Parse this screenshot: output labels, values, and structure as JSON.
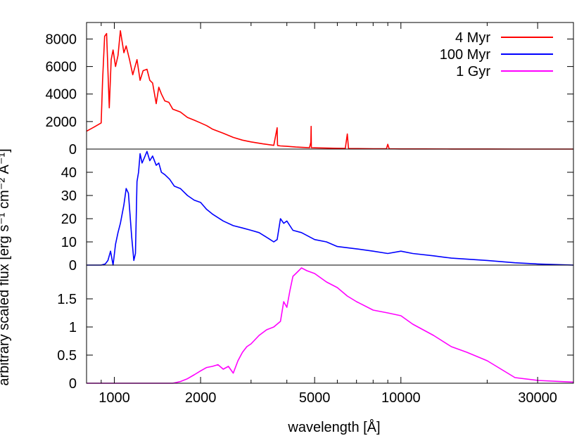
{
  "chart_data": {
    "type": "line",
    "xlabel": "wavelength [Å]",
    "ylabel": "arbitrary scaled flux [erg s⁻¹ cm⁻² Å⁻¹]",
    "x_scale": "log",
    "xlim": [
      800,
      40000
    ],
    "x_ticks": [
      1000,
      2000,
      5000,
      10000,
      30000
    ],
    "x_tick_labels": [
      "1000",
      "2000",
      "5000",
      "10000",
      "30000"
    ],
    "grid": false,
    "legend_position": "top-right",
    "panels": [
      {
        "series_name": "4 Myr",
        "color": "#ff0000",
        "ylim": [
          0,
          9200
        ],
        "y_ticks": [
          0,
          2000,
          4000,
          6000,
          8000
        ],
        "y_tick_labels": [
          "0",
          "2000",
          "4000",
          "6000",
          "8000"
        ],
        "x": [
          800,
          850,
          900,
          910,
          925,
          940,
          960,
          975,
          990,
          1010,
          1030,
          1050,
          1080,
          1100,
          1130,
          1160,
          1200,
          1230,
          1260,
          1300,
          1330,
          1360,
          1400,
          1430,
          1460,
          1500,
          1550,
          1600,
          1700,
          1800,
          1900,
          2000,
          2100,
          2200,
          2400,
          2600,
          2800,
          3000,
          3300,
          3600,
          3700,
          3710,
          3720,
          3800,
          4000,
          4300,
          4600,
          4800,
          4850,
          4861,
          4870,
          5000,
          5500,
          6000,
          6400,
          6500,
          6563,
          6600,
          7000,
          8000,
          8900,
          9000,
          9100,
          9500,
          10000,
          12000,
          15000,
          20000,
          25000,
          30000,
          40000
        ],
        "values": [
          1300,
          1600,
          1900,
          5000,
          8200,
          8400,
          3000,
          6500,
          7200,
          6000,
          6800,
          8600,
          7000,
          7500,
          6500,
          5400,
          6500,
          5000,
          5700,
          5800,
          5000,
          4800,
          3300,
          4500,
          4000,
          3500,
          3400,
          2900,
          2700,
          2300,
          2100,
          1900,
          1700,
          1450,
          1150,
          850,
          650,
          520,
          380,
          270,
          1550,
          300,
          250,
          230,
          200,
          150,
          120,
          100,
          500,
          1650,
          100,
          90,
          70,
          55,
          50,
          1100,
          45,
          40,
          35,
          28,
          20,
          350,
          20,
          15,
          12,
          8,
          5,
          3,
          2,
          1,
          0
        ]
      },
      {
        "series_name": "100 Myr",
        "color": "#0000ff",
        "ylim": [
          0,
          50
        ],
        "y_ticks": [
          0,
          10,
          20,
          30,
          40
        ],
        "y_tick_labels": [
          "0",
          "10",
          "20",
          "30",
          "40"
        ],
        "x": [
          800,
          900,
          930,
          950,
          970,
          990,
          1010,
          1030,
          1050,
          1080,
          1100,
          1120,
          1150,
          1170,
          1185,
          1200,
          1215,
          1230,
          1250,
          1270,
          1300,
          1330,
          1360,
          1400,
          1430,
          1460,
          1500,
          1560,
          1620,
          1700,
          1800,
          1900,
          2000,
          2100,
          2200,
          2400,
          2600,
          2800,
          3000,
          3200,
          3400,
          3600,
          3700,
          3800,
          3900,
          4000,
          4200,
          4500,
          5000,
          5500,
          6000,
          7000,
          8000,
          9000,
          10000,
          11000,
          13000,
          15000,
          20000,
          25000,
          30000,
          40000
        ],
        "values": [
          0,
          0,
          0.5,
          2,
          6,
          0,
          9,
          14,
          18,
          26,
          33,
          31,
          12,
          2,
          5,
          36,
          40,
          48,
          44,
          46,
          49,
          45,
          47,
          43,
          44,
          40,
          39,
          37,
          34,
          33,
          30,
          28,
          27,
          24,
          22,
          19,
          17,
          16,
          15,
          14,
          12,
          10,
          11,
          20,
          18,
          19,
          15,
          14,
          11,
          10,
          8,
          7,
          6,
          5,
          6,
          5,
          4,
          3,
          2,
          1,
          0.5,
          0
        ]
      },
      {
        "series_name": "1 Gyr",
        "color": "#ff00ff",
        "ylim": [
          0,
          2.1
        ],
        "y_ticks": [
          0,
          0.5,
          1,
          1.5
        ],
        "y_tick_labels": [
          "0",
          "0.5",
          "1",
          "1.5"
        ],
        "x": [
          800,
          1600,
          1700,
          1800,
          1900,
          2000,
          2100,
          2200,
          2300,
          2400,
          2500,
          2600,
          2700,
          2800,
          2900,
          3000,
          3200,
          3400,
          3600,
          3800,
          3900,
          4000,
          4100,
          4200,
          4300,
          4500,
          4700,
          5000,
          5500,
          6000,
          6500,
          7000,
          8000,
          9000,
          10000,
          11000,
          13000,
          15000,
          17000,
          20000,
          25000,
          30000,
          40000
        ],
        "values": [
          0,
          0,
          0.03,
          0.08,
          0.15,
          0.22,
          0.28,
          0.3,
          0.33,
          0.25,
          0.3,
          0.18,
          0.4,
          0.55,
          0.65,
          0.7,
          0.85,
          0.95,
          1.0,
          1.1,
          1.45,
          1.35,
          1.65,
          1.9,
          1.95,
          2.05,
          2.0,
          1.95,
          1.8,
          1.7,
          1.55,
          1.45,
          1.3,
          1.25,
          1.2,
          1.05,
          0.85,
          0.65,
          0.55,
          0.4,
          0.1,
          0.05,
          0.02
        ]
      }
    ]
  }
}
